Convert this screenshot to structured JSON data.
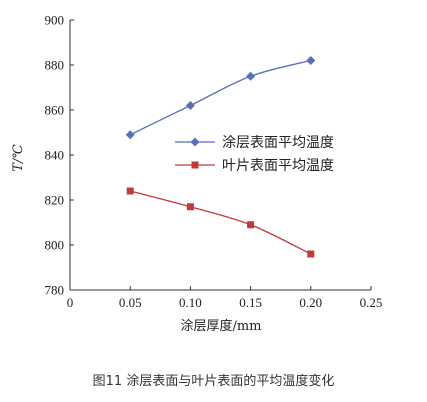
{
  "caption": "图11 涂层表面与叶片表面的平均温度变化",
  "chart_data": {
    "type": "line",
    "xlabel": "涂层厚度/mm",
    "ylabel": "T/℃",
    "xlim": [
      0,
      0.25
    ],
    "ylim": [
      780,
      900
    ],
    "x_ticks": [
      "0",
      "0.05",
      "0.10",
      "0.15",
      "0.20",
      "0.25"
    ],
    "x_tick_values": [
      0,
      0.05,
      0.1,
      0.15,
      0.2,
      0.25
    ],
    "y_ticks": [
      "780",
      "800",
      "820",
      "840",
      "860",
      "880",
      "900"
    ],
    "y_tick_values": [
      780,
      800,
      820,
      840,
      860,
      880,
      900
    ],
    "grid": false,
    "legend_position": "center-right",
    "x": [
      0.05,
      0.1,
      0.15,
      0.2
    ],
    "series": [
      {
        "name": "涂层表面平均温度",
        "values": [
          849,
          862,
          875,
          882
        ],
        "color": "#5b6fb5",
        "marker": "diamond"
      },
      {
        "name": "叶片表面平均温度",
        "values": [
          824,
          817,
          809,
          796
        ],
        "color": "#c0393b",
        "marker": "square"
      }
    ]
  }
}
